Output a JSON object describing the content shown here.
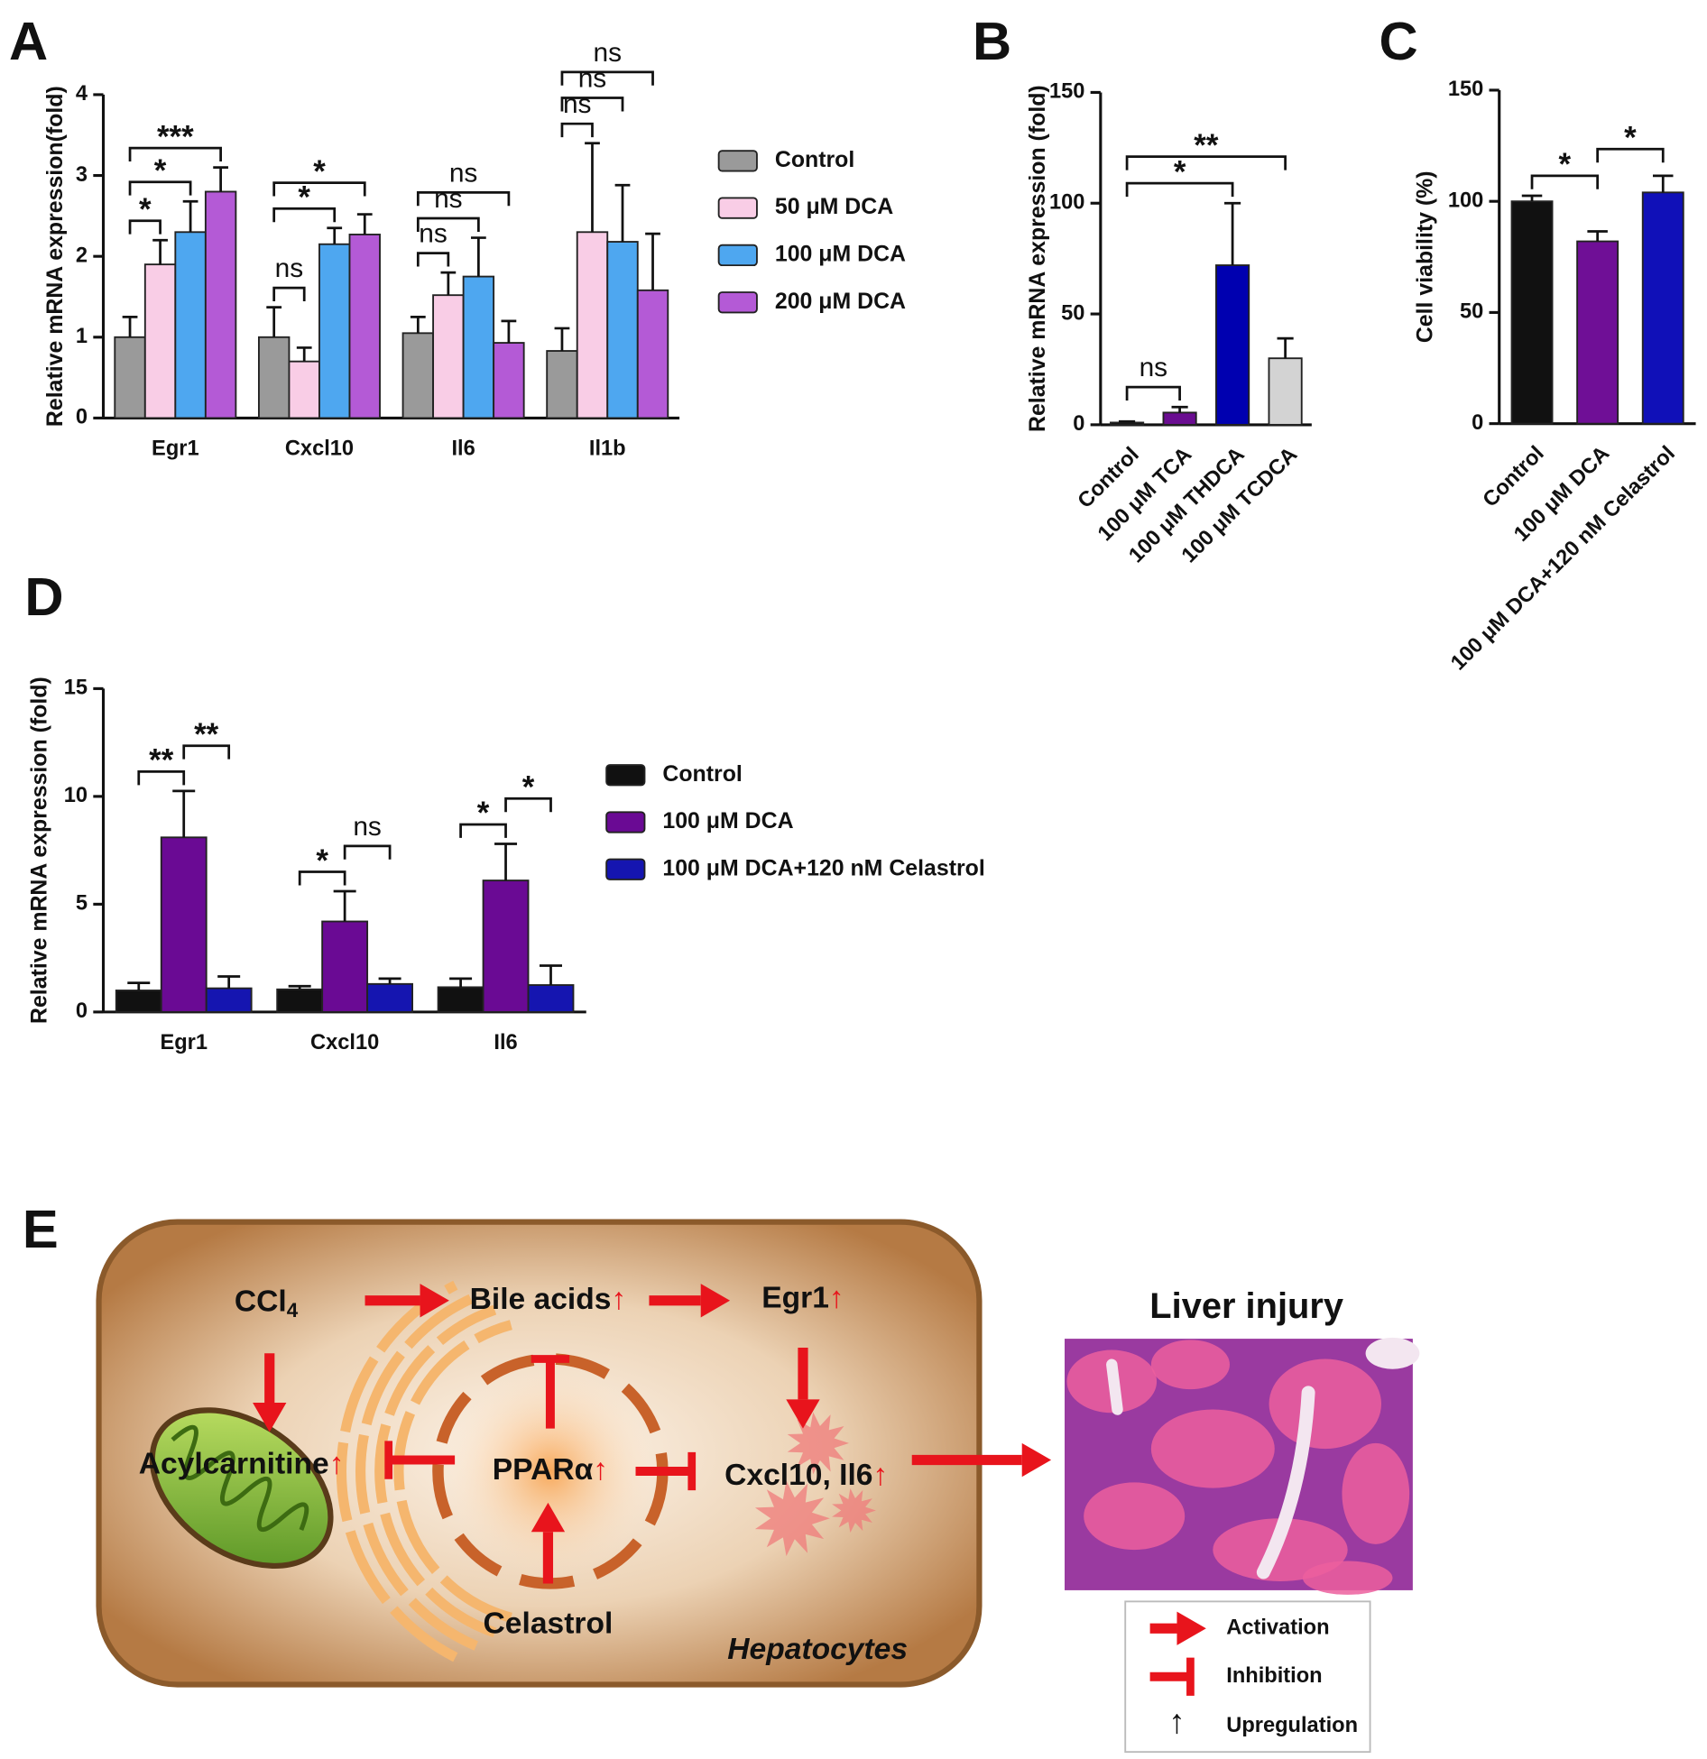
{
  "chart_data": [
    {
      "type": "bar",
      "panel": "A",
      "ylabel": "Relative mRNA expression(fold)",
      "categories": [
        "Egr1",
        "Cxcl10",
        "Il6",
        "Il1b"
      ],
      "series": [
        {
          "name": "Control",
          "color": "#9a9a9a",
          "values": [
            1.0,
            1.0,
            1.05,
            0.83
          ],
          "errors": [
            0.25,
            0.37,
            0.2,
            0.28
          ]
        },
        {
          "name": "50 μM DCA",
          "color": "#f9cde6",
          "values": [
            1.9,
            0.7,
            1.52,
            2.3
          ],
          "errors": [
            0.3,
            0.17,
            0.28,
            1.1
          ]
        },
        {
          "name": "100 μM DCA",
          "color": "#4ea7f0",
          "values": [
            2.3,
            2.15,
            1.75,
            2.18
          ],
          "errors": [
            0.38,
            0.2,
            0.48,
            0.7
          ]
        },
        {
          "name": "200 μM DCA",
          "color": "#b45ad6",
          "values": [
            2.8,
            2.27,
            0.93,
            1.58
          ],
          "errors": [
            0.3,
            0.25,
            0.27,
            0.7
          ]
        }
      ],
      "ylim": [
        0,
        4
      ],
      "yticks": [
        0,
        1,
        2,
        3,
        4
      ],
      "significance": [
        {
          "category": "Egr1",
          "groups": [
            "Control",
            "50 μM DCA"
          ],
          "label": "*"
        },
        {
          "category": "Egr1",
          "groups": [
            "Control",
            "100 μM DCA"
          ],
          "label": "*"
        },
        {
          "category": "Egr1",
          "groups": [
            "Control",
            "200 μM DCA"
          ],
          "label": "***"
        },
        {
          "category": "Cxcl10",
          "groups": [
            "Control",
            "50 μM DCA"
          ],
          "label": "ns"
        },
        {
          "category": "Cxcl10",
          "groups": [
            "Control",
            "100 μM DCA"
          ],
          "label": "*"
        },
        {
          "category": "Cxcl10",
          "groups": [
            "Control",
            "200 μM DCA"
          ],
          "label": "*"
        },
        {
          "category": "Il6",
          "groups": [
            "Control",
            "50 μM DCA"
          ],
          "label": "ns"
        },
        {
          "category": "Il6",
          "groups": [
            "Control",
            "100 μM DCA"
          ],
          "label": "ns"
        },
        {
          "category": "Il6",
          "groups": [
            "Control",
            "200 μM DCA"
          ],
          "label": "ns"
        },
        {
          "category": "Il1b",
          "groups": [
            "Control",
            "50 μM DCA"
          ],
          "label": "ns"
        },
        {
          "category": "Il1b",
          "groups": [
            "Control",
            "100 μM DCA"
          ],
          "label": "ns"
        },
        {
          "category": "Il1b",
          "groups": [
            "Control",
            "200 μM DCA"
          ],
          "label": "ns"
        }
      ]
    },
    {
      "type": "bar",
      "panel": "B",
      "ylabel": "Relative mRNA expression (fold)",
      "categories": [
        "Control",
        "100 μM TCA",
        "100 μM THDCA",
        "100 μM TCDCA"
      ],
      "values": [
        1,
        5.5,
        72,
        30
      ],
      "errors": [
        0.5,
        2.5,
        28,
        9
      ],
      "colors": [
        "#111111",
        "#6a0d91",
        "#0000b0",
        "#d3d3d3"
      ],
      "ylim": [
        0,
        150
      ],
      "yticks": [
        0,
        50,
        100,
        150
      ],
      "significance": [
        {
          "groups": [
            "Control",
            "100 μM TCA"
          ],
          "label": "ns"
        },
        {
          "groups": [
            "Control",
            "100 μM THDCA"
          ],
          "label": "*"
        },
        {
          "groups": [
            "Control",
            "100 μM TCDCA"
          ],
          "label": "**"
        }
      ]
    },
    {
      "type": "bar",
      "panel": "C",
      "ylabel": "Cell viability (%)",
      "categories": [
        "Control",
        "100 μM DCA",
        "100 μM DCA+120 nM Celastrol"
      ],
      "values": [
        100,
        82,
        104
      ],
      "errors": [
        2.5,
        4.5,
        7.5
      ],
      "colors": [
        "#111111",
        "#6f0f96",
        "#1010b8"
      ],
      "ylim": [
        0,
        150
      ],
      "yticks": [
        0,
        50,
        100,
        150
      ],
      "significance": [
        {
          "groups": [
            "Control",
            "100 μM DCA"
          ],
          "label": "*"
        },
        {
          "groups": [
            "100 μM DCA",
            "100 μM DCA+120 nM Celastrol"
          ],
          "label": "*"
        }
      ]
    },
    {
      "type": "bar",
      "panel": "D",
      "ylabel": "Relative mRNA expression (fold)",
      "categories": [
        "Egr1",
        "Cxcl10",
        "Il6"
      ],
      "series": [
        {
          "name": "Control",
          "color": "#111111",
          "values": [
            1.0,
            1.05,
            1.15
          ],
          "errors": [
            0.35,
            0.15,
            0.4
          ]
        },
        {
          "name": "100 μM DCA",
          "color": "#6a0a94",
          "values": [
            8.1,
            4.2,
            6.1
          ],
          "errors": [
            2.15,
            1.4,
            1.7
          ]
        },
        {
          "name": "100 μM DCA+120 nM Celastrol",
          "color": "#1515b0",
          "values": [
            1.1,
            1.3,
            1.25
          ],
          "errors": [
            0.55,
            0.25,
            0.9
          ]
        }
      ],
      "ylim": [
        0,
        15
      ],
      "yticks": [
        0,
        5,
        10,
        15
      ],
      "significance": [
        {
          "category": "Egr1",
          "groups": [
            "Control",
            "100 μM DCA"
          ],
          "label": "**"
        },
        {
          "category": "Egr1",
          "groups": [
            "100 μM DCA",
            "100 μM DCA+120 nM Celastrol"
          ],
          "label": "**"
        },
        {
          "category": "Cxcl10",
          "groups": [
            "Control",
            "100 μM DCA"
          ],
          "label": "*"
        },
        {
          "category": "Cxcl10",
          "groups": [
            "100 μM DCA",
            "100 μM DCA+120 nM Celastrol"
          ],
          "label": "ns"
        },
        {
          "category": "Il6",
          "groups": [
            "Control",
            "100 μM DCA"
          ],
          "label": "*"
        },
        {
          "category": "Il6",
          "groups": [
            "100 μM DCA",
            "100 μM DCA+120 nM Celastrol"
          ],
          "label": "*"
        }
      ]
    }
  ],
  "diagram": {
    "panel": "E",
    "up_symbol": "↑",
    "cell_label": "Hepatocytes",
    "nodes": [
      {
        "label": "CCl",
        "subscript": "4"
      },
      {
        "label": "Bile acids",
        "up": true
      },
      {
        "label": "Egr1",
        "up": true
      },
      {
        "label": "Acylcarnitine",
        "up": true
      },
      {
        "label": "PPARα",
        "up": true
      },
      {
        "label": "Cxcl10, Il6",
        "up": true
      },
      {
        "label": "Celastrol"
      }
    ],
    "outcome": "Liver injury",
    "legend": [
      "Activation",
      "Inhibition",
      "Upregulation"
    ]
  }
}
